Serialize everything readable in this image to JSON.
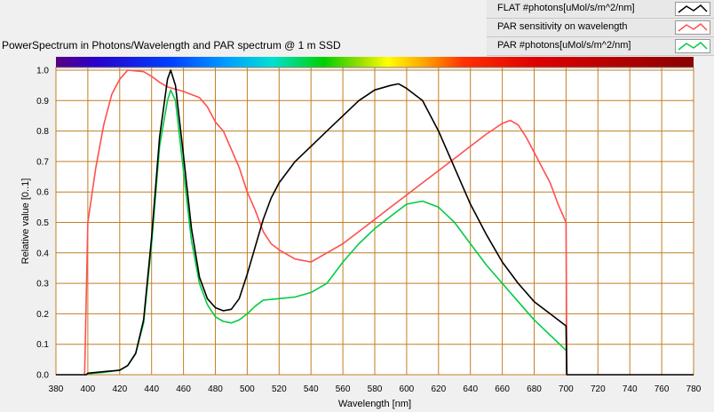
{
  "chart_data": {
    "type": "line",
    "title": "PowerSpectrum in Photons/Wavelength and PAR spectrum @ 1 m SSD",
    "xlabel": "Wavelength [nm]",
    "ylabel": "Relative value [0..1]",
    "xlim": [
      380,
      780
    ],
    "ylim": [
      0,
      1.0
    ],
    "xticks": [
      "380",
      "400",
      "420",
      "440",
      "460",
      "480",
      "500",
      "520",
      "540",
      "560",
      "580",
      "600",
      "620",
      "640",
      "660",
      "680",
      "700",
      "720",
      "740",
      "760",
      "780"
    ],
    "yticks": [
      "0.0",
      "0.1",
      "0.2",
      "0.3",
      "0.4",
      "0.5",
      "0.6",
      "0.7",
      "0.8",
      "0.9",
      "1.0"
    ],
    "grid": true,
    "legend_position": "top-right",
    "colors": {
      "plot_bg": "#ffffff",
      "grid": "#c07f27",
      "spectrum_bar": "rainbow"
    },
    "series": [
      {
        "name": "FLAT #photons[uMol/s/m^2/nm]",
        "color": "#000000",
        "points": [
          [
            380,
            0
          ],
          [
            399,
            0
          ],
          [
            400,
            0.005
          ],
          [
            410,
            0.01
          ],
          [
            420,
            0.015
          ],
          [
            425,
            0.03
          ],
          [
            430,
            0.07
          ],
          [
            435,
            0.18
          ],
          [
            440,
            0.45
          ],
          [
            445,
            0.78
          ],
          [
            450,
            0.97
          ],
          [
            452,
            1.0
          ],
          [
            455,
            0.95
          ],
          [
            460,
            0.72
          ],
          [
            465,
            0.48
          ],
          [
            470,
            0.32
          ],
          [
            475,
            0.25
          ],
          [
            480,
            0.22
          ],
          [
            485,
            0.21
          ],
          [
            490,
            0.215
          ],
          [
            495,
            0.25
          ],
          [
            500,
            0.33
          ],
          [
            505,
            0.42
          ],
          [
            510,
            0.51
          ],
          [
            515,
            0.58
          ],
          [
            520,
            0.63
          ],
          [
            530,
            0.7
          ],
          [
            540,
            0.75
          ],
          [
            550,
            0.8
          ],
          [
            560,
            0.85
          ],
          [
            570,
            0.9
          ],
          [
            580,
            0.935
          ],
          [
            590,
            0.95
          ],
          [
            595,
            0.955
          ],
          [
            600,
            0.94
          ],
          [
            610,
            0.9
          ],
          [
            620,
            0.8
          ],
          [
            630,
            0.68
          ],
          [
            640,
            0.56
          ],
          [
            650,
            0.46
          ],
          [
            660,
            0.37
          ],
          [
            670,
            0.3
          ],
          [
            680,
            0.24
          ],
          [
            690,
            0.2
          ],
          [
            700,
            0.16
          ],
          [
            700.5,
            0
          ],
          [
            780,
            0
          ]
        ]
      },
      {
        "name": "PAR sensitivity on wavelength",
        "color": "#ff4f4f",
        "points": [
          [
            398,
            0
          ],
          [
            399,
            0.25
          ],
          [
            400,
            0.5
          ],
          [
            405,
            0.68
          ],
          [
            410,
            0.82
          ],
          [
            415,
            0.92
          ],
          [
            420,
            0.97
          ],
          [
            425,
            1.0
          ],
          [
            435,
            0.995
          ],
          [
            440,
            0.98
          ],
          [
            445,
            0.96
          ],
          [
            450,
            0.945
          ],
          [
            460,
            0.93
          ],
          [
            470,
            0.91
          ],
          [
            475,
            0.88
          ],
          [
            480,
            0.83
          ],
          [
            485,
            0.8
          ],
          [
            490,
            0.74
          ],
          [
            495,
            0.68
          ],
          [
            500,
            0.6
          ],
          [
            505,
            0.54
          ],
          [
            510,
            0.47
          ],
          [
            515,
            0.43
          ],
          [
            520,
            0.41
          ],
          [
            530,
            0.38
          ],
          [
            540,
            0.37
          ],
          [
            550,
            0.4
          ],
          [
            560,
            0.43
          ],
          [
            570,
            0.47
          ],
          [
            580,
            0.51
          ],
          [
            590,
            0.55
          ],
          [
            600,
            0.59
          ],
          [
            610,
            0.63
          ],
          [
            620,
            0.67
          ],
          [
            630,
            0.71
          ],
          [
            640,
            0.75
          ],
          [
            650,
            0.79
          ],
          [
            660,
            0.825
          ],
          [
            665,
            0.835
          ],
          [
            670,
            0.82
          ],
          [
            675,
            0.78
          ],
          [
            680,
            0.73
          ],
          [
            685,
            0.68
          ],
          [
            690,
            0.63
          ],
          [
            695,
            0.56
          ],
          [
            700,
            0.5
          ],
          [
            700.5,
            0
          ]
        ]
      },
      {
        "name": "PAR #photons[uMol/s/m^2/nm]",
        "color": "#00cc44",
        "points": [
          [
            400,
            0.003
          ],
          [
            410,
            0.008
          ],
          [
            420,
            0.015
          ],
          [
            425,
            0.03
          ],
          [
            430,
            0.07
          ],
          [
            435,
            0.17
          ],
          [
            440,
            0.43
          ],
          [
            445,
            0.75
          ],
          [
            450,
            0.9
          ],
          [
            452,
            0.935
          ],
          [
            455,
            0.9
          ],
          [
            460,
            0.67
          ],
          [
            465,
            0.44
          ],
          [
            470,
            0.3
          ],
          [
            475,
            0.23
          ],
          [
            480,
            0.19
          ],
          [
            485,
            0.175
          ],
          [
            490,
            0.17
          ],
          [
            495,
            0.18
          ],
          [
            500,
            0.2
          ],
          [
            505,
            0.225
          ],
          [
            510,
            0.245
          ],
          [
            520,
            0.25
          ],
          [
            530,
            0.255
          ],
          [
            540,
            0.27
          ],
          [
            550,
            0.3
          ],
          [
            560,
            0.37
          ],
          [
            570,
            0.43
          ],
          [
            580,
            0.48
          ],
          [
            590,
            0.52
          ],
          [
            600,
            0.56
          ],
          [
            610,
            0.57
          ],
          [
            620,
            0.55
          ],
          [
            630,
            0.5
          ],
          [
            640,
            0.43
          ],
          [
            650,
            0.36
          ],
          [
            660,
            0.3
          ],
          [
            670,
            0.24
          ],
          [
            680,
            0.18
          ],
          [
            690,
            0.13
          ],
          [
            700,
            0.08
          ]
        ]
      }
    ]
  }
}
